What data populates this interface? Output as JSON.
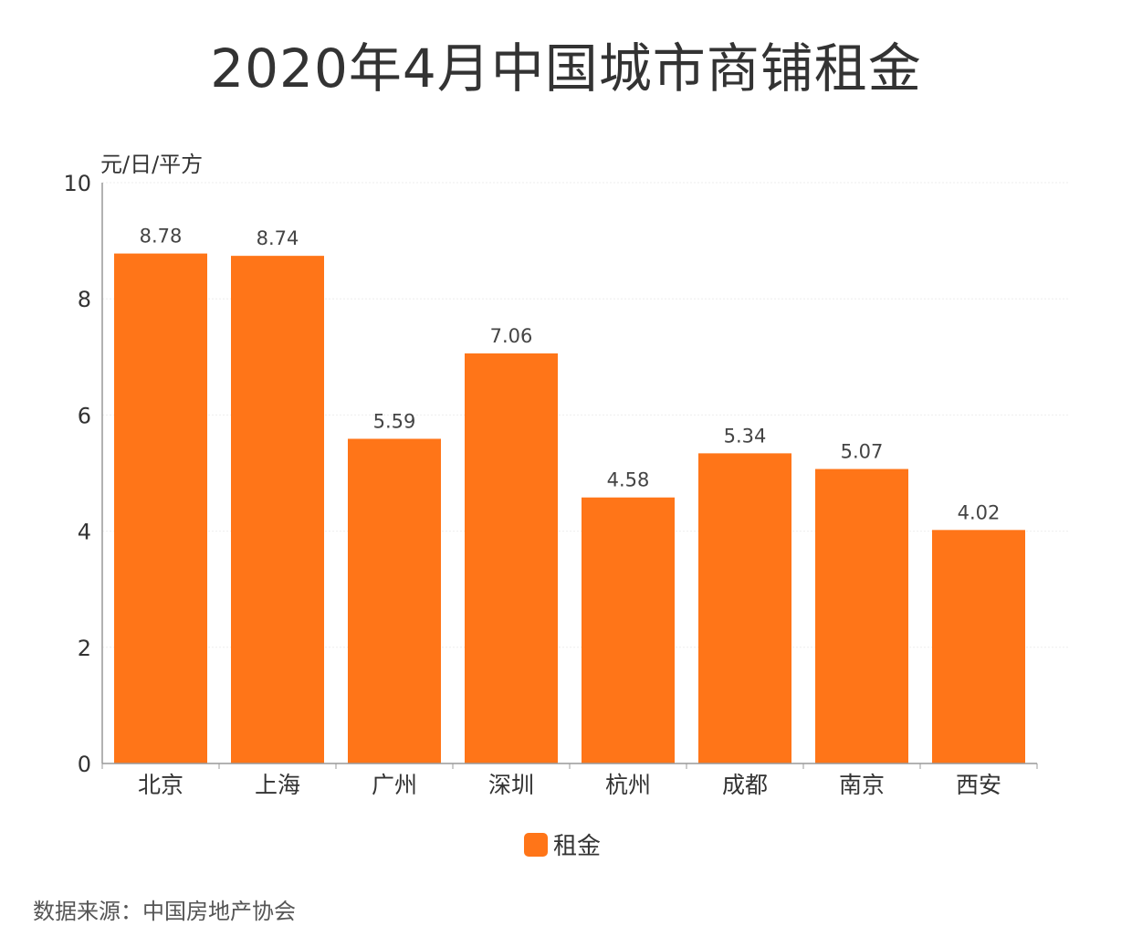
{
  "title": "2020年4月中国城市商铺租金",
  "source": "数据来源：中国房地产协会",
  "colors": {
    "bar": "#FF7518",
    "axis": "#999999",
    "grid": "#EEEEEE"
  },
  "chart_data": {
    "type": "bar",
    "title": "2020年4月中国城市商铺租金",
    "ylabel": "元/日/平方",
    "xlabel": "",
    "ylim": [
      0,
      10
    ],
    "yticks": [
      "0",
      "2",
      "4",
      "6",
      "8",
      "10"
    ],
    "categories": [
      "北京",
      "上海",
      "广州",
      "深圳",
      "杭州",
      "成都",
      "南京",
      "西安"
    ],
    "series": [
      {
        "name": "租金",
        "values": [
          8.78,
          8.74,
          5.59,
          7.06,
          4.58,
          5.34,
          5.07,
          4.02
        ]
      }
    ],
    "data_labels": [
      "8.78",
      "8.74",
      "5.59",
      "7.06",
      "4.58",
      "5.34",
      "5.07",
      "4.02"
    ],
    "legend_position": "bottom",
    "grid": true
  }
}
